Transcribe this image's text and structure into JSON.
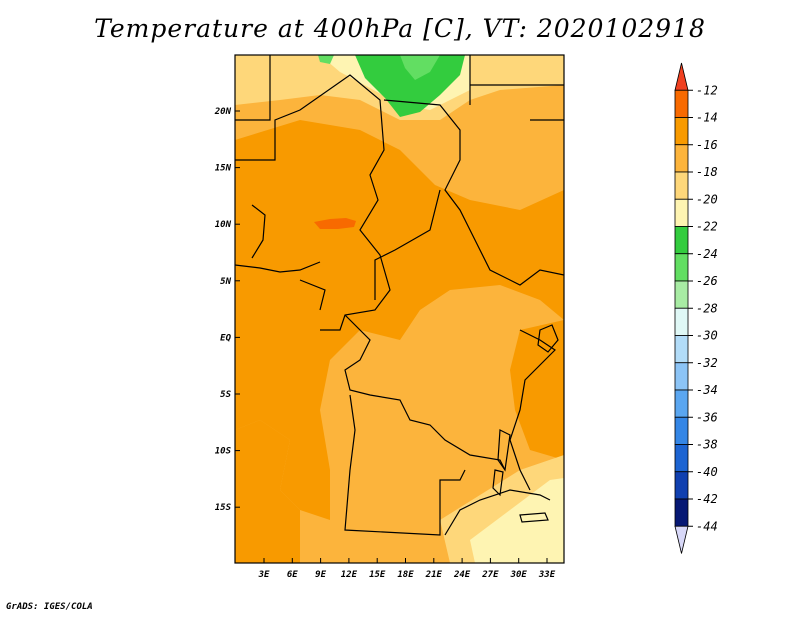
{
  "title": "Temperature at 400hPa [C], VT: 2020102918",
  "footer": "GrADS: IGES/COLA",
  "map": {
    "lon_ticks": [
      "3E",
      "6E",
      "9E",
      "12E",
      "15E",
      "18E",
      "21E",
      "24E",
      "27E",
      "30E",
      "33E"
    ],
    "lat_ticks": [
      "20N",
      "15N",
      "10N",
      "5N",
      "EQ",
      "5S",
      "10S",
      "15S"
    ]
  },
  "legend": {
    "levels": [
      {
        "label": "-12",
        "color": "#f04020"
      },
      {
        "label": "-14",
        "color": "#f86a00"
      },
      {
        "label": "-16",
        "color": "#f89a00"
      },
      {
        "label": "-18",
        "color": "#fcb43c"
      },
      {
        "label": "-20",
        "color": "#fed77a"
      },
      {
        "label": "-22",
        "color": "#fef4b2"
      },
      {
        "label": "-24",
        "color": "#33cc3e"
      },
      {
        "label": "-26",
        "color": "#62de62"
      },
      {
        "label": "-28",
        "color": "#a8eca4"
      },
      {
        "label": "-30",
        "color": "#e0f8f6"
      },
      {
        "label": "-32",
        "color": "#b2dcf8"
      },
      {
        "label": "-34",
        "color": "#8cc4f6"
      },
      {
        "label": "-36",
        "color": "#5aa6f0"
      },
      {
        "label": "-38",
        "color": "#3486e6"
      },
      {
        "label": "-40",
        "color": "#1c64d2"
      },
      {
        "label": "-42",
        "color": "#1040b0"
      },
      {
        "label": "-44",
        "color": "#061874"
      }
    ],
    "bottom_color": "#d8d8f8"
  }
}
